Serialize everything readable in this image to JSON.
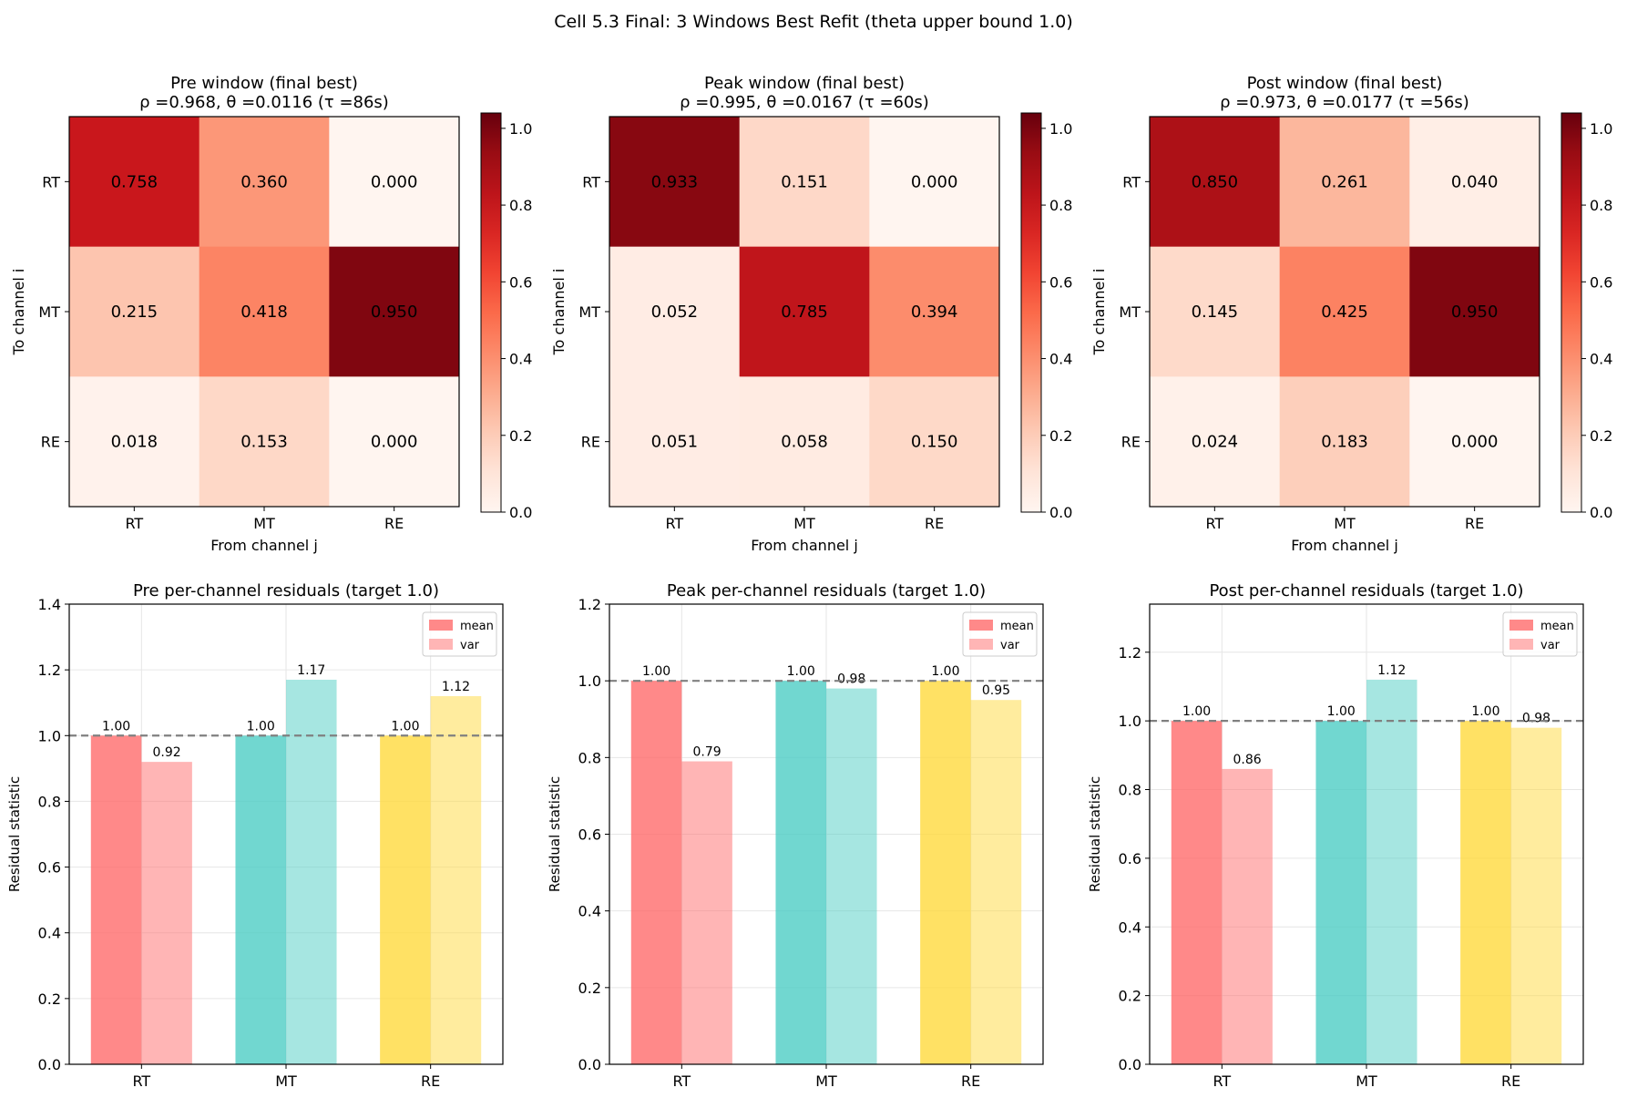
{
  "figure": {
    "suptitle": "Cell 5.3 Final: 3 Windows Best Refit (theta upper bound 1.0)"
  },
  "chart_data": [
    {
      "type": "heatmap",
      "title": "Pre window (final best)",
      "subtitle": "ρ =0.968, θ =0.0116 (τ =86s)",
      "xlabel": "From channel j",
      "ylabel": "To channel i",
      "x_categories": [
        "RT",
        "MT",
        "RE"
      ],
      "y_categories": [
        "RT",
        "MT",
        "RE"
      ],
      "values": [
        [
          0.758,
          0.36,
          0.0
        ],
        [
          0.215,
          0.418,
          0.95
        ],
        [
          0.018,
          0.153,
          0.0
        ]
      ],
      "value_labels": [
        [
          "0.758",
          "0.360",
          "0.000"
        ],
        [
          "0.215",
          "0.418",
          "0.950"
        ],
        [
          "0.018",
          "0.153",
          "0.000"
        ]
      ],
      "colormap": "Reds",
      "colorbar": {
        "range": [
          0,
          1.0
        ],
        "ticks": [
          "0.0",
          "0.2",
          "0.4",
          "0.6",
          "0.8",
          "1.0"
        ]
      }
    },
    {
      "type": "heatmap",
      "title": "Peak window (final best)",
      "subtitle": "ρ =0.995, θ =0.0167 (τ =60s)",
      "xlabel": "From channel j",
      "ylabel": "To channel i",
      "x_categories": [
        "RT",
        "MT",
        "RE"
      ],
      "y_categories": [
        "RT",
        "MT",
        "RE"
      ],
      "values": [
        [
          0.933,
          0.151,
          0.0
        ],
        [
          0.052,
          0.785,
          0.394
        ],
        [
          0.051,
          0.058,
          0.15
        ]
      ],
      "value_labels": [
        [
          "0.933",
          "0.151",
          "0.000"
        ],
        [
          "0.052",
          "0.785",
          "0.394"
        ],
        [
          "0.051",
          "0.058",
          "0.150"
        ]
      ],
      "colormap": "Reds",
      "colorbar": {
        "range": [
          0,
          1.0
        ],
        "ticks": [
          "0.0",
          "0.2",
          "0.4",
          "0.6",
          "0.8",
          "1.0"
        ]
      }
    },
    {
      "type": "heatmap",
      "title": "Post window (final best)",
      "subtitle": "ρ =0.973, θ =0.0177 (τ =56s)",
      "xlabel": "From channel j",
      "ylabel": "To channel i",
      "x_categories": [
        "RT",
        "MT",
        "RE"
      ],
      "y_categories": [
        "RT",
        "MT",
        "RE"
      ],
      "values": [
        [
          0.85,
          0.261,
          0.04
        ],
        [
          0.145,
          0.425,
          0.95
        ],
        [
          0.024,
          0.183,
          0.0
        ]
      ],
      "value_labels": [
        [
          "0.850",
          "0.261",
          "0.040"
        ],
        [
          "0.145",
          "0.425",
          "0.950"
        ],
        [
          "0.024",
          "0.183",
          "0.000"
        ]
      ],
      "colormap": "Reds",
      "colorbar": {
        "range": [
          0,
          1.0
        ],
        "ticks": [
          "0.0",
          "0.2",
          "0.4",
          "0.6",
          "0.8",
          "1.0"
        ]
      }
    },
    {
      "type": "bar",
      "title": "Pre per-channel residuals (target 1.0)",
      "xlabel": "",
      "ylabel": "Residual statistic",
      "categories": [
        "RT",
        "MT",
        "RE"
      ],
      "series": [
        {
          "name": "mean",
          "values": [
            1.0,
            1.0,
            1.0
          ],
          "labels": [
            "1.00",
            "1.00",
            "1.00"
          ]
        },
        {
          "name": "var",
          "values": [
            0.92,
            1.17,
            1.12
          ],
          "labels": [
            "0.92",
            "1.17",
            "1.12"
          ]
        }
      ],
      "category_colors": [
        "#ff6b6b",
        "#4ecdc4",
        "#ffd93d"
      ],
      "ylim": [
        0,
        1.4
      ],
      "yticks": [
        "0.0",
        "0.2",
        "0.4",
        "0.6",
        "0.8",
        "1.0",
        "1.2",
        "1.4"
      ],
      "reference_line": 1.0,
      "grid": true,
      "legend": "top-right"
    },
    {
      "type": "bar",
      "title": "Peak per-channel residuals (target 1.0)",
      "xlabel": "",
      "ylabel": "Residual statistic",
      "categories": [
        "RT",
        "MT",
        "RE"
      ],
      "series": [
        {
          "name": "mean",
          "values": [
            1.0,
            1.0,
            1.0
          ],
          "labels": [
            "1.00",
            "1.00",
            "1.00"
          ]
        },
        {
          "name": "var",
          "values": [
            0.79,
            0.98,
            0.95
          ],
          "labels": [
            "0.79",
            "0.98",
            "0.95"
          ]
        }
      ],
      "category_colors": [
        "#ff6b6b",
        "#4ecdc4",
        "#ffd93d"
      ],
      "ylim": [
        0,
        1.2
      ],
      "yticks": [
        "0.0",
        "0.2",
        "0.4",
        "0.6",
        "0.8",
        "1.0",
        "1.2"
      ],
      "reference_line": 1.0,
      "grid": true,
      "legend": "top-right"
    },
    {
      "type": "bar",
      "title": "Post per-channel residuals (target 1.0)",
      "xlabel": "",
      "ylabel": "Residual statistic",
      "categories": [
        "RT",
        "MT",
        "RE"
      ],
      "series": [
        {
          "name": "mean",
          "values": [
            1.0,
            1.0,
            1.0
          ],
          "labels": [
            "1.00",
            "1.00",
            "1.00"
          ]
        },
        {
          "name": "var",
          "values": [
            0.86,
            1.12,
            0.98
          ],
          "labels": [
            "0.86",
            "1.12",
            "0.98"
          ]
        }
      ],
      "category_colors": [
        "#ff6b6b",
        "#4ecdc4",
        "#ffd93d"
      ],
      "ylim": [
        0,
        1.34
      ],
      "yticks": [
        "0.0",
        "0.2",
        "0.4",
        "0.6",
        "0.8",
        "1.0",
        "1.2"
      ],
      "reference_line": 1.0,
      "grid": true,
      "legend": "top-right"
    }
  ]
}
